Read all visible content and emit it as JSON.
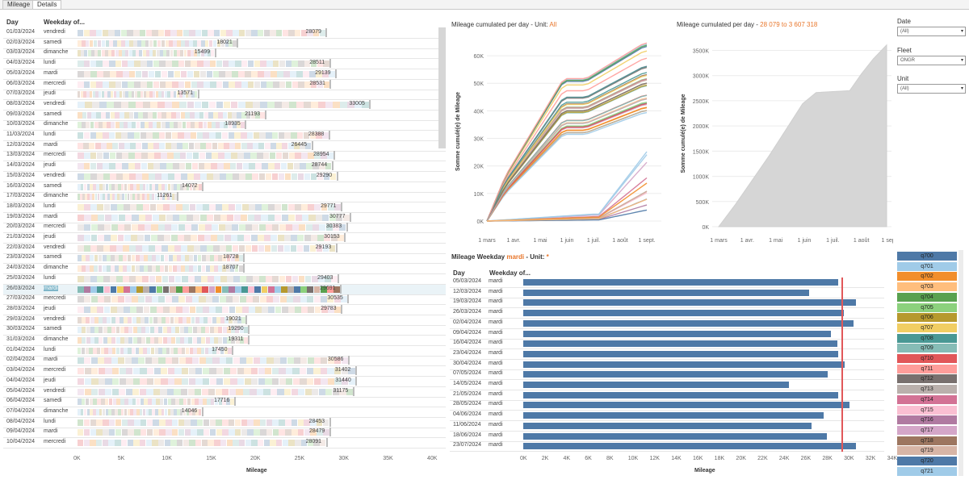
{
  "tabs": [
    "Mileage",
    "Details"
  ],
  "active_tab": 1,
  "left_table": {
    "headers": {
      "day": "Day",
      "weekday": "Weekday of..."
    },
    "rows": [
      {
        "day": "01/03/2024",
        "wd": "vendredi",
        "v": 28079
      },
      {
        "day": "02/03/2024",
        "wd": "samedi",
        "v": 18021
      },
      {
        "day": "03/03/2024",
        "wd": "dimanche",
        "v": 15499
      },
      {
        "day": "04/03/2024",
        "wd": "lundi",
        "v": 28511
      },
      {
        "day": "05/03/2024",
        "wd": "mardi",
        "v": 29139
      },
      {
        "day": "06/03/2024",
        "wd": "mercredi",
        "v": 28531
      },
      {
        "day": "07/03/2024",
        "wd": "jeudi",
        "v": 13571
      },
      {
        "day": "08/03/2024",
        "wd": "vendredi",
        "v": 33005
      },
      {
        "day": "09/03/2024",
        "wd": "samedi",
        "v": 21193
      },
      {
        "day": "10/03/2024",
        "wd": "dimanche",
        "v": 18935
      },
      {
        "day": "11/03/2024",
        "wd": "lundi",
        "v": 28388
      },
      {
        "day": "12/03/2024",
        "wd": "mardi",
        "v": 26445
      },
      {
        "day": "13/03/2024",
        "wd": "mercredi",
        "v": 28954
      },
      {
        "day": "14/03/2024",
        "wd": "jeudi",
        "v": 28744
      },
      {
        "day": "15/03/2024",
        "wd": "vendredi",
        "v": 29290
      },
      {
        "day": "16/03/2024",
        "wd": "samedi",
        "v": 14072
      },
      {
        "day": "17/03/2024",
        "wd": "dimanche",
        "v": 11261
      },
      {
        "day": "18/03/2024",
        "wd": "lundi",
        "v": 29771
      },
      {
        "day": "19/03/2024",
        "wd": "mardi",
        "v": 30777
      },
      {
        "day": "20/03/2024",
        "wd": "mercredi",
        "v": 30383
      },
      {
        "day": "21/03/2024",
        "wd": "jeudi",
        "v": 30153
      },
      {
        "day": "22/03/2024",
        "wd": "vendredi",
        "v": 29193
      },
      {
        "day": "23/03/2024",
        "wd": "samedi",
        "v": 18728
      },
      {
        "day": "24/03/2024",
        "wd": "dimanche",
        "v": 18707
      },
      {
        "day": "25/03/2024",
        "wd": "lundi",
        "v": 29403
      },
      {
        "day": "26/03/2024",
        "wd": "mardi",
        "v": 29691
      },
      {
        "day": "27/03/2024",
        "wd": "mercredi",
        "v": 30535
      },
      {
        "day": "28/03/2024",
        "wd": "jeudi",
        "v": 29783
      },
      {
        "day": "29/03/2024",
        "wd": "vendredi",
        "v": 19021
      },
      {
        "day": "30/03/2024",
        "wd": "samedi",
        "v": 19290
      },
      {
        "day": "31/03/2024",
        "wd": "dimanche",
        "v": 19311
      },
      {
        "day": "01/04/2024",
        "wd": "lundi",
        "v": 17450
      },
      {
        "day": "02/04/2024",
        "wd": "mardi",
        "v": 30586
      },
      {
        "day": "03/04/2024",
        "wd": "mercredi",
        "v": 31402
      },
      {
        "day": "04/04/2024",
        "wd": "jeudi",
        "v": 31440
      },
      {
        "day": "05/04/2024",
        "wd": "vendredi",
        "v": 31175
      },
      {
        "day": "06/04/2024",
        "wd": "samedi",
        "v": 17716
      },
      {
        "day": "07/04/2024",
        "wd": "dimanche",
        "v": 14046
      },
      {
        "day": "08/04/2024",
        "wd": "lundi",
        "v": 28453
      },
      {
        "day": "09/04/2024",
        "wd": "mardi",
        "v": 28479
      },
      {
        "day": "10/04/2024",
        "wd": "mercredi",
        "v": 28091
      }
    ],
    "selected_index": 25,
    "x_ticks": [
      "0K",
      "5K",
      "10K",
      "15K",
      "20K",
      "25K",
      "30K",
      "35K",
      "40K"
    ],
    "x_max": 40000,
    "x_title": "Mileage"
  },
  "line_chart": {
    "title_prefix": "Mileage cumulated per day - Unit: ",
    "title_accent": "All",
    "y_title": "Somme cumulé(e) de Mileage",
    "y_ticks": [
      "0K",
      "10K",
      "20K",
      "30K",
      "40K",
      "50K",
      "60K"
    ],
    "x_ticks": [
      "1 mars",
      "1 avr.",
      "1 mai",
      "1 juin",
      "1 juil.",
      "1 août",
      "1 sept."
    ]
  },
  "area_chart": {
    "title_prefix": "Mileage cumulated per day - ",
    "title_accent": "28 079 to 3 607 318",
    "y_title": "Somme cumulé(e) de Mileage",
    "y_ticks": [
      "0K",
      "500K",
      "1000K",
      "1500K",
      "2000K",
      "2500K",
      "3000K",
      "3500K"
    ],
    "x_ticks": [
      "1 mars",
      "1 avr.",
      "1 mai",
      "1 juin",
      "1 juil.",
      "1 août",
      "1 sept."
    ]
  },
  "filters": [
    {
      "label": "Date",
      "value": "(All)"
    },
    {
      "label": "Fleet",
      "value": "ONGR"
    },
    {
      "label": "Unit",
      "value": "(All)"
    }
  ],
  "bar_chart": {
    "title_prefix": "Mileage Weekday ",
    "title_accent": "mardi",
    "title_mid": " - Unit: ",
    "title_accent2": "*",
    "headers": {
      "day": "Day",
      "weekday": "Weekday of..."
    },
    "rows": [
      {
        "day": "05/03/2024",
        "wd": "mardi",
        "v": 29139
      },
      {
        "day": "12/03/2024",
        "wd": "mardi",
        "v": 26445
      },
      {
        "day": "19/03/2024",
        "wd": "mardi",
        "v": 30777
      },
      {
        "day": "26/03/2024",
        "wd": "mardi",
        "v": 29691
      },
      {
        "day": "02/04/2024",
        "wd": "mardi",
        "v": 30586
      },
      {
        "day": "09/04/2024",
        "wd": "mardi",
        "v": 28479
      },
      {
        "day": "16/04/2024",
        "wd": "mardi",
        "v": 29100
      },
      {
        "day": "23/04/2024",
        "wd": "mardi",
        "v": 29150
      },
      {
        "day": "30/04/2024",
        "wd": "mardi",
        "v": 29800
      },
      {
        "day": "07/05/2024",
        "wd": "mardi",
        "v": 28200
      },
      {
        "day": "14/05/2024",
        "wd": "mardi",
        "v": 24600
      },
      {
        "day": "21/05/2024",
        "wd": "mardi",
        "v": 29150
      },
      {
        "day": "28/05/2024",
        "wd": "mardi",
        "v": 30200
      },
      {
        "day": "04/06/2024",
        "wd": "mardi",
        "v": 27800
      },
      {
        "day": "11/06/2024",
        "wd": "mardi",
        "v": 26700
      },
      {
        "day": "18/06/2024",
        "wd": "mardi",
        "v": 28100
      },
      {
        "day": "23/07/2024",
        "wd": "mardi",
        "v": 30800
      }
    ],
    "x_ticks": [
      "0K",
      "2K",
      "4K",
      "6K",
      "8K",
      "10K",
      "12K",
      "14K",
      "16K",
      "18K",
      "20K",
      "22K",
      "24K",
      "26K",
      "28K",
      "30K",
      "32K",
      "34K"
    ],
    "x_max": 35000,
    "ref_line": 29500,
    "x_title": "Mileage"
  },
  "legend": [
    {
      "name": "q700",
      "color": "#4e79a7"
    },
    {
      "name": "q701",
      "color": "#a0cbe8"
    },
    {
      "name": "q702",
      "color": "#f28e2b"
    },
    {
      "name": "q703",
      "color": "#ffbe7d"
    },
    {
      "name": "q704",
      "color": "#59a14f"
    },
    {
      "name": "q705",
      "color": "#8cd17d"
    },
    {
      "name": "q706",
      "color": "#b6992d"
    },
    {
      "name": "q707",
      "color": "#f1ce63"
    },
    {
      "name": "q708",
      "color": "#499894"
    },
    {
      "name": "q709",
      "color": "#86bcb6"
    },
    {
      "name": "q710",
      "color": "#e15759"
    },
    {
      "name": "q711",
      "color": "#ff9d9a"
    },
    {
      "name": "q712",
      "color": "#79706e"
    },
    {
      "name": "q713",
      "color": "#bab0ac"
    },
    {
      "name": "q714",
      "color": "#d37295"
    },
    {
      "name": "q715",
      "color": "#fabfd2"
    },
    {
      "name": "q716",
      "color": "#b07aa1"
    },
    {
      "name": "q717",
      "color": "#d4a6c8"
    },
    {
      "name": "q718",
      "color": "#9d7660"
    },
    {
      "name": "q719",
      "color": "#d7b5a6"
    },
    {
      "name": "q720",
      "color": "#4e79a7"
    },
    {
      "name": "q721",
      "color": "#a0cbe8"
    }
  ]
}
